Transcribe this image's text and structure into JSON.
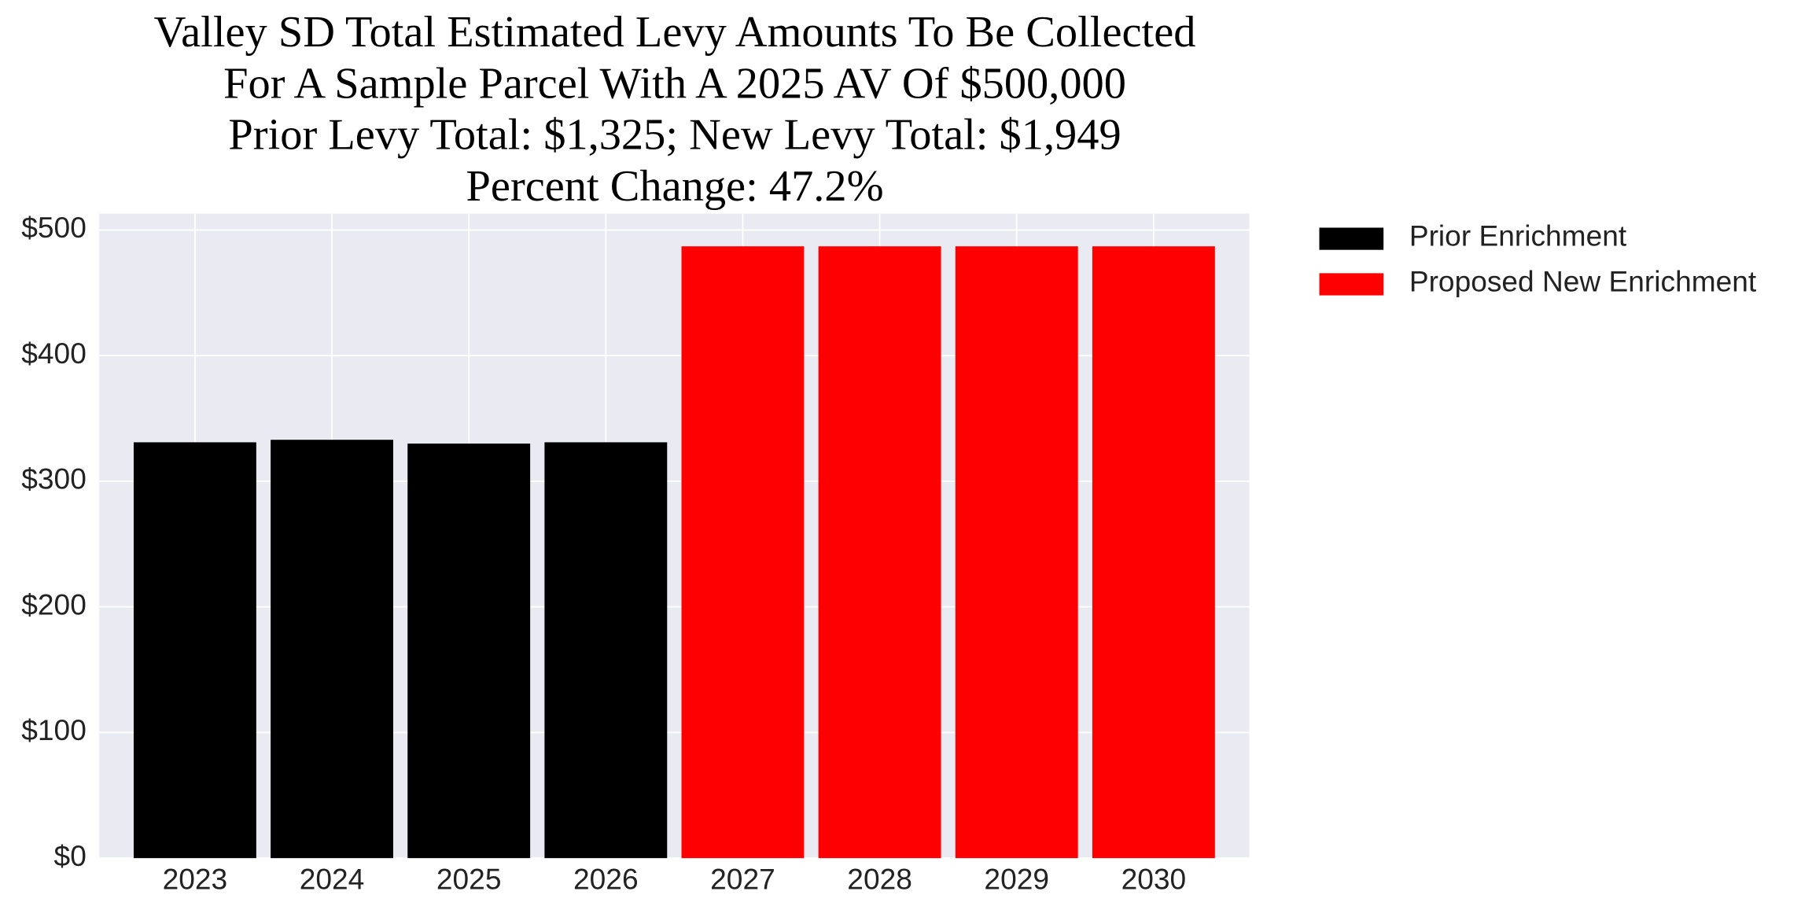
{
  "chart_data": {
    "type": "bar",
    "title": [
      "Valley SD Total Estimated Levy Amounts To Be Collected",
      "For A Sample Parcel With A 2025 AV Of $500,000",
      "Prior Levy Total:  $1,325; New Levy Total: $1,949",
      "Percent Change: 47.2%"
    ],
    "categories": [
      "2023",
      "2024",
      "2025",
      "2026",
      "2027",
      "2028",
      "2029",
      "2030"
    ],
    "series": [
      {
        "name": "Prior Enrichment",
        "color": "#000000",
        "values": [
          331,
          333,
          330,
          331,
          null,
          null,
          null,
          null
        ]
      },
      {
        "name": "Proposed New Enrichment",
        "color": "#ff0000",
        "values": [
          null,
          null,
          null,
          null,
          487,
          487,
          487,
          487
        ]
      }
    ],
    "ylim": [
      0,
      513
    ],
    "yticks": [
      {
        "value": 0,
        "label": "$0"
      },
      {
        "value": 100,
        "label": "$100"
      },
      {
        "value": 200,
        "label": "$200"
      },
      {
        "value": 300,
        "label": "$300"
      },
      {
        "value": 400,
        "label": "$400"
      },
      {
        "value": 500,
        "label": "$500"
      }
    ],
    "grid": true,
    "legend": "outside-right"
  }
}
